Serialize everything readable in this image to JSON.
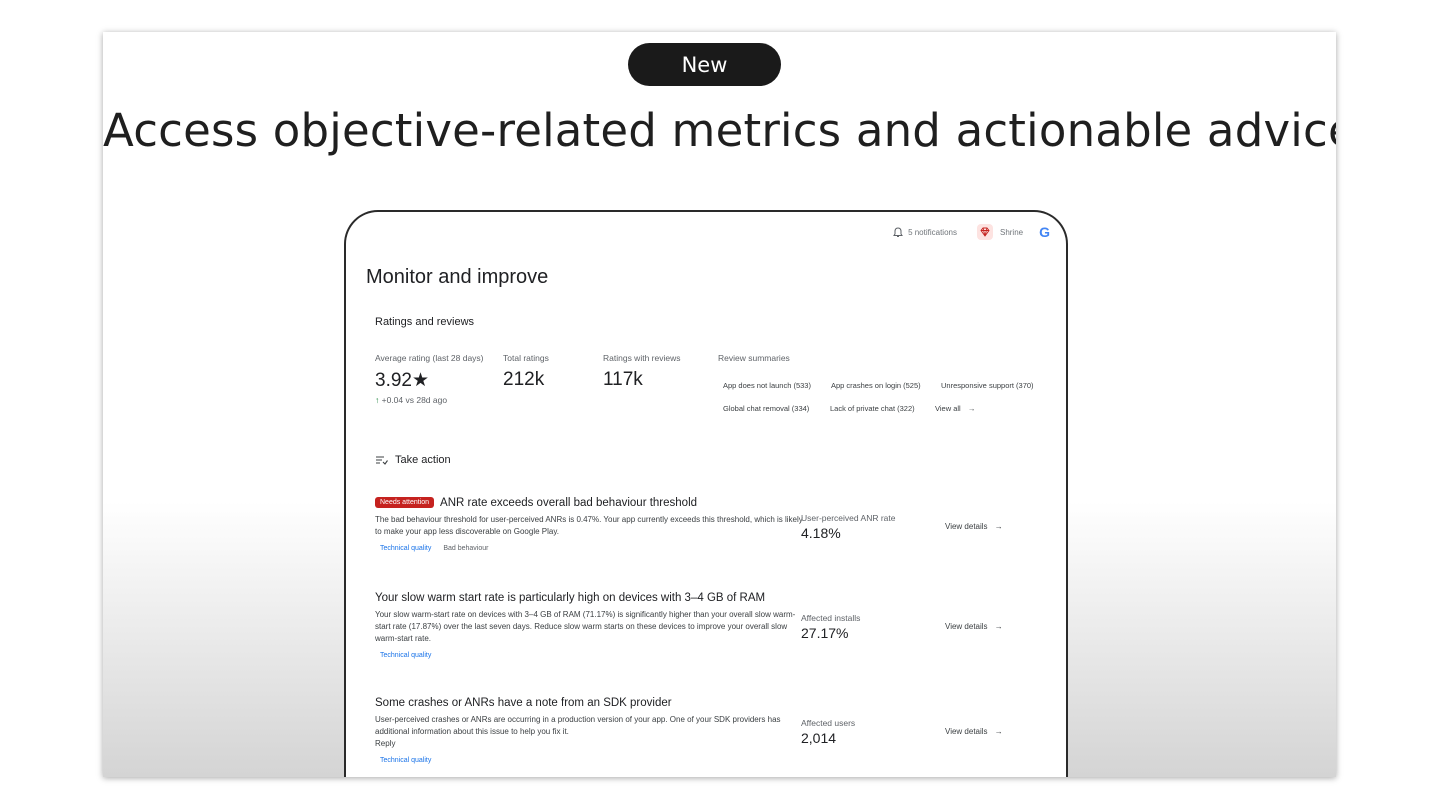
{
  "slide": {
    "badge": "New",
    "title": "Access objective-related metrics and actionable advice"
  },
  "topbar": {
    "notifications": "5 notifications",
    "app_name": "Shrine",
    "google_logo": "G"
  },
  "page": {
    "title": "Monitor and improve"
  },
  "ratings": {
    "section_title": "Ratings and reviews",
    "average_label": "Average rating (last 28 days)",
    "average_value": "3.92★",
    "average_delta_arrow": "↑",
    "average_delta": "+0.04 vs 28d ago",
    "total_label": "Total ratings",
    "total_value": "212k",
    "with_reviews_label": "Ratings with reviews",
    "with_reviews_value": "117k",
    "summaries_label": "Review summaries",
    "summaries": [
      "App does not launch (533)",
      "App crashes on login (525)",
      "Unresponsive support (370)",
      "Global chat removal (334)",
      "Lack of private chat (322)"
    ],
    "view_all": "View all"
  },
  "take_action": {
    "label": "Take action"
  },
  "cards": [
    {
      "badge": "Needs attention",
      "title": "ANR rate exceeds overall bad behaviour threshold",
      "description": "The bad behaviour threshold for user-perceived ANRs is 0.47%. Your app currently exceeds this threshold, which is likely to make your app less discoverable on Google Play.",
      "tag_link": "Technical quality",
      "tag_plain": "Bad behaviour",
      "metric_label": "User-perceived ANR rate",
      "metric_value": "4.18%",
      "action": "View details"
    },
    {
      "title": "Your slow warm start rate is particularly high on devices with 3–4 GB of RAM",
      "description": "Your slow warm-start rate on devices with 3–4 GB of RAM (71.17%) is significantly higher than your overall slow warm-start rate (17.87%) over the last seven days. Reduce slow warm starts on these devices to improve your overall slow warm-start rate.",
      "tag_link": "Technical quality",
      "metric_label": "Affected installs",
      "metric_value": "27.17%",
      "action": "View details"
    },
    {
      "title": "Some crashes or ANRs have a note from an SDK provider",
      "description": "User-perceived crashes or ANRs are occurring in a production version of your app. One of your SDK providers has additional information about this issue to help you fix it.",
      "extra": "Reply",
      "tag_link": "Technical quality",
      "metric_label": "Affected users",
      "metric_value": "2,014",
      "action": "View details"
    }
  ]
}
